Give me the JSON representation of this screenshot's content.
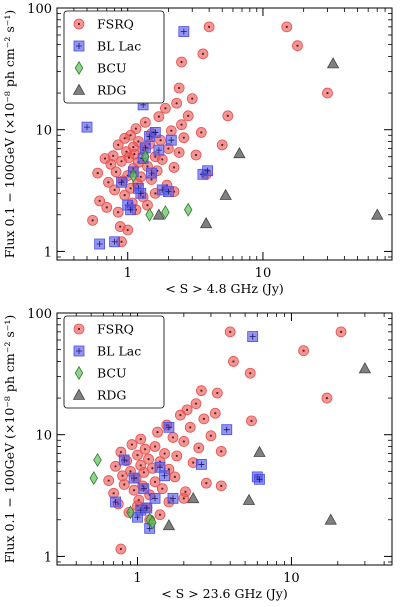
{
  "chart_data": [
    {
      "type": "scatter",
      "xscale": "log",
      "yscale": "log",
      "xlim": [
        0.3,
        90
      ],
      "ylim": [
        0.85,
        100
      ],
      "xlabel": "< S > 4.8 GHz (Jy)",
      "ylabel": "Flux 0.1 − 100GeV (×10⁻⁸ ph cm⁻² s⁻¹)",
      "xticks": [
        {
          "v": 1,
          "label": "1"
        },
        {
          "v": 10,
          "label": "10"
        }
      ],
      "yticks": [
        {
          "v": 1,
          "label": "1"
        },
        {
          "v": 10,
          "label": "10"
        },
        {
          "v": 100,
          "label": "100"
        }
      ],
      "legend_position": "top-left",
      "series": [
        {
          "name": "FSRQ",
          "marker": "circle",
          "color": "#e8504f",
          "points": [
            [
              0.55,
              1.8
            ],
            [
              0.62,
              2.6
            ],
            [
              0.7,
              2.3
            ],
            [
              0.72,
              3.7
            ],
            [
              0.75,
              5.2
            ],
            [
              0.78,
              6.1
            ],
            [
              0.8,
              3.2
            ],
            [
              0.82,
              4.5
            ],
            [
              0.85,
              7.5
            ],
            [
              0.85,
              2.1
            ],
            [
              0.88,
              1.6
            ],
            [
              0.9,
              5.5
            ],
            [
              0.92,
              3.8
            ],
            [
              0.95,
              2.9
            ],
            [
              0.95,
              8.5
            ],
            [
              0.98,
              6.6
            ],
            [
              1.0,
              4.2
            ],
            [
              1.0,
              1.5
            ],
            [
              1.02,
              5.9
            ],
            [
              1.05,
              3.3
            ],
            [
              1.05,
              9.0
            ],
            [
              1.08,
              2.5
            ],
            [
              1.1,
              7.2
            ],
            [
              1.1,
              4.8
            ],
            [
              1.12,
              6.3
            ],
            [
              1.15,
              10.2
            ],
            [
              1.18,
              3.6
            ],
            [
              1.2,
              5.4
            ],
            [
              1.2,
              8.0
            ],
            [
              1.25,
              4.1
            ],
            [
              1.3,
              6.8
            ],
            [
              1.3,
              2.8
            ],
            [
              1.35,
              11.5
            ],
            [
              1.4,
              5.0
            ],
            [
              1.45,
              7.6
            ],
            [
              1.5,
              9.3
            ],
            [
              1.5,
              3.9
            ],
            [
              1.6,
              6.0
            ],
            [
              1.65,
              4.6
            ],
            [
              1.7,
              12.8
            ],
            [
              1.75,
              8.2
            ],
            [
              1.8,
              5.7
            ],
            [
              1.9,
              15.0
            ],
            [
              1.95,
              3.5
            ],
            [
              2.0,
              7.0
            ],
            [
              2.1,
              9.8
            ],
            [
              2.2,
              4.9
            ],
            [
              2.3,
              16.5
            ],
            [
              2.4,
              6.5
            ],
            [
              2.5,
              11.0
            ],
            [
              2.6,
              8.6
            ],
            [
              2.8,
              13.0
            ],
            [
              3.0,
              18.0
            ],
            [
              3.2,
              6.2
            ],
            [
              3.5,
              9.5
            ],
            [
              3.8,
              4.3
            ],
            [
              2.5,
              36.0
            ],
            [
              2.4,
              22.0
            ],
            [
              3.6,
              42.0
            ],
            [
              4.0,
              70.0
            ],
            [
              5.5,
              13.0
            ],
            [
              5.0,
              7.5
            ],
            [
              15.0,
              70.0
            ],
            [
              18.0,
              49.0
            ],
            [
              30.0,
              20.0
            ],
            [
              0.6,
              4.4
            ],
            [
              0.68,
              5.8
            ],
            [
              1.4,
              2.4
            ],
            [
              1.15,
              2.2
            ],
            [
              2.2,
              3.1
            ],
            [
              1.6,
              3.0
            ],
            [
              0.9,
              1.2
            ]
          ]
        },
        {
          "name": "BL Lac",
          "marker": "square",
          "color": "#4b4ee8",
          "points": [
            [
              0.5,
              10.5
            ],
            [
              0.62,
              1.15
            ],
            [
              0.8,
              1.2
            ],
            [
              0.9,
              3.7
            ],
            [
              1.0,
              2.4
            ],
            [
              1.05,
              2.2
            ],
            [
              1.1,
              4.5
            ],
            [
              1.2,
              3.3
            ],
            [
              1.25,
              3.0
            ],
            [
              1.3,
              16.0
            ],
            [
              1.3,
              5.8
            ],
            [
              1.35,
              7.1
            ],
            [
              1.45,
              8.8
            ],
            [
              1.5,
              4.4
            ],
            [
              1.6,
              9.5
            ],
            [
              1.7,
              6.8
            ],
            [
              1.8,
              3.2
            ],
            [
              2.0,
              3.1
            ],
            [
              2.1,
              8.2
            ],
            [
              2.6,
              64.0
            ],
            [
              3.6,
              4.3
            ],
            [
              3.9,
              4.6
            ]
          ]
        },
        {
          "name": "BCU",
          "marker": "diamond",
          "color": "#5ec25a",
          "points": [
            [
              1.1,
              4.2
            ],
            [
              1.35,
              6.0
            ],
            [
              1.45,
              2.0
            ],
            [
              1.9,
              2.1
            ],
            [
              2.8,
              2.2
            ]
          ]
        },
        {
          "name": "RDG",
          "marker": "triangle",
          "color": "#6a6a6a",
          "points": [
            [
              1.7,
              2.0
            ],
            [
              3.8,
              1.7
            ],
            [
              5.3,
              2.9
            ],
            [
              6.7,
              6.4
            ],
            [
              33.0,
              35.0
            ],
            [
              70.0,
              2.0
            ]
          ]
        }
      ]
    },
    {
      "type": "scatter",
      "xscale": "log",
      "yscale": "log",
      "xlim": [
        0.3,
        45
      ],
      "ylim": [
        0.85,
        100
      ],
      "xlabel": "< S > 23.6 GHz (Jy)",
      "ylabel": "Flux 0.1 − 100GeV (×10⁻⁸ ph cm⁻² s⁻¹)",
      "xticks": [
        {
          "v": 1,
          "label": "1"
        },
        {
          "v": 10,
          "label": "10"
        }
      ],
      "yticks": [
        {
          "v": 1,
          "label": "1"
        },
        {
          "v": 10,
          "label": "10"
        },
        {
          "v": 100,
          "label": "100"
        }
      ],
      "legend_position": "top-left",
      "series": [
        {
          "name": "FSRQ",
          "marker": "circle",
          "color": "#e8504f",
          "points": [
            [
              0.65,
              4.2
            ],
            [
              0.7,
              3.3
            ],
            [
              0.72,
              5.5
            ],
            [
              0.75,
              2.7
            ],
            [
              0.78,
              7.2
            ],
            [
              0.8,
              4.6
            ],
            [
              0.82,
              3.9
            ],
            [
              0.85,
              6.1
            ],
            [
              0.88,
              2.3
            ],
            [
              0.9,
              5.0
            ],
            [
              0.92,
              8.3
            ],
            [
              0.95,
              3.5
            ],
            [
              0.98,
              4.4
            ],
            [
              1.0,
              6.8
            ],
            [
              1.02,
              2.9
            ],
            [
              1.05,
              5.6
            ],
            [
              1.05,
              9.2
            ],
            [
              1.08,
              3.8
            ],
            [
              1.1,
              4.9
            ],
            [
              1.12,
              7.6
            ],
            [
              1.15,
              2.5
            ],
            [
              1.18,
              6.3
            ],
            [
              1.2,
              3.2
            ],
            [
              1.25,
              5.3
            ],
            [
              1.3,
              8.0
            ],
            [
              1.3,
              4.1
            ],
            [
              1.35,
              10.5
            ],
            [
              1.4,
              6.0
            ],
            [
              1.45,
              3.6
            ],
            [
              1.5,
              7.0
            ],
            [
              1.55,
              12.0
            ],
            [
              1.6,
              5.2
            ],
            [
              1.7,
              9.5
            ],
            [
              1.75,
              4.5
            ],
            [
              1.8,
              6.7
            ],
            [
              1.9,
              14.5
            ],
            [
              2.0,
              8.8
            ],
            [
              2.05,
              3.4
            ],
            [
              2.1,
              16.0
            ],
            [
              2.2,
              11.5
            ],
            [
              2.3,
              5.9
            ],
            [
              2.4,
              18.0
            ],
            [
              2.5,
              7.8
            ],
            [
              2.7,
              13.5
            ],
            [
              2.8,
              4.0
            ],
            [
              3.0,
              9.8
            ],
            [
              3.2,
              15.0
            ],
            [
              3.5,
              7.3
            ],
            [
              2.6,
              23.0
            ],
            [
              3.3,
              22.0
            ],
            [
              4.0,
              70.0
            ],
            [
              4.2,
              40.0
            ],
            [
              5.5,
              13.0
            ],
            [
              5.4,
              32.0
            ],
            [
              3.5,
              3.8
            ],
            [
              12.0,
              49.0
            ],
            [
              17.0,
              20.0
            ],
            [
              21.0,
              70.0
            ],
            [
              1.4,
              2.2
            ],
            [
              1.0,
              2.6
            ],
            [
              0.78,
              1.15
            ],
            [
              1.6,
              2.8
            ],
            [
              2.0,
              3.0
            ],
            [
              1.2,
              2.0
            ]
          ]
        },
        {
          "name": "BL Lac",
          "marker": "square",
          "color": "#4b4ee8",
          "points": [
            [
              0.72,
              2.8
            ],
            [
              0.82,
              6.2
            ],
            [
              0.95,
              4.4
            ],
            [
              1.0,
              2.1
            ],
            [
              1.05,
              2.4
            ],
            [
              1.1,
              3.6
            ],
            [
              1.2,
              1.7
            ],
            [
              1.3,
              3.0
            ],
            [
              1.4,
              5.4
            ],
            [
              1.5,
              4.6
            ],
            [
              1.6,
              11.5
            ],
            [
              1.7,
              3.0
            ],
            [
              2.6,
              5.7
            ],
            [
              3.8,
              11.0
            ],
            [
              5.6,
              64.0
            ],
            [
              6.0,
              4.5
            ],
            [
              6.2,
              4.3
            ],
            [
              1.15,
              2.5
            ]
          ]
        },
        {
          "name": "BCU",
          "marker": "diamond",
          "color": "#5ec25a",
          "points": [
            [
              0.52,
              4.4
            ],
            [
              0.55,
              6.2
            ],
            [
              0.9,
              2.3
            ],
            [
              1.2,
              2.0
            ],
            [
              1.25,
              1.9
            ]
          ]
        },
        {
          "name": "RDG",
          "marker": "triangle",
          "color": "#6a6a6a",
          "points": [
            [
              1.6,
              1.8
            ],
            [
              2.3,
              3.0
            ],
            [
              5.3,
              2.9
            ],
            [
              6.2,
              7.2
            ],
            [
              18.0,
              2.0
            ],
            [
              30.0,
              35.0
            ]
          ]
        }
      ]
    }
  ]
}
